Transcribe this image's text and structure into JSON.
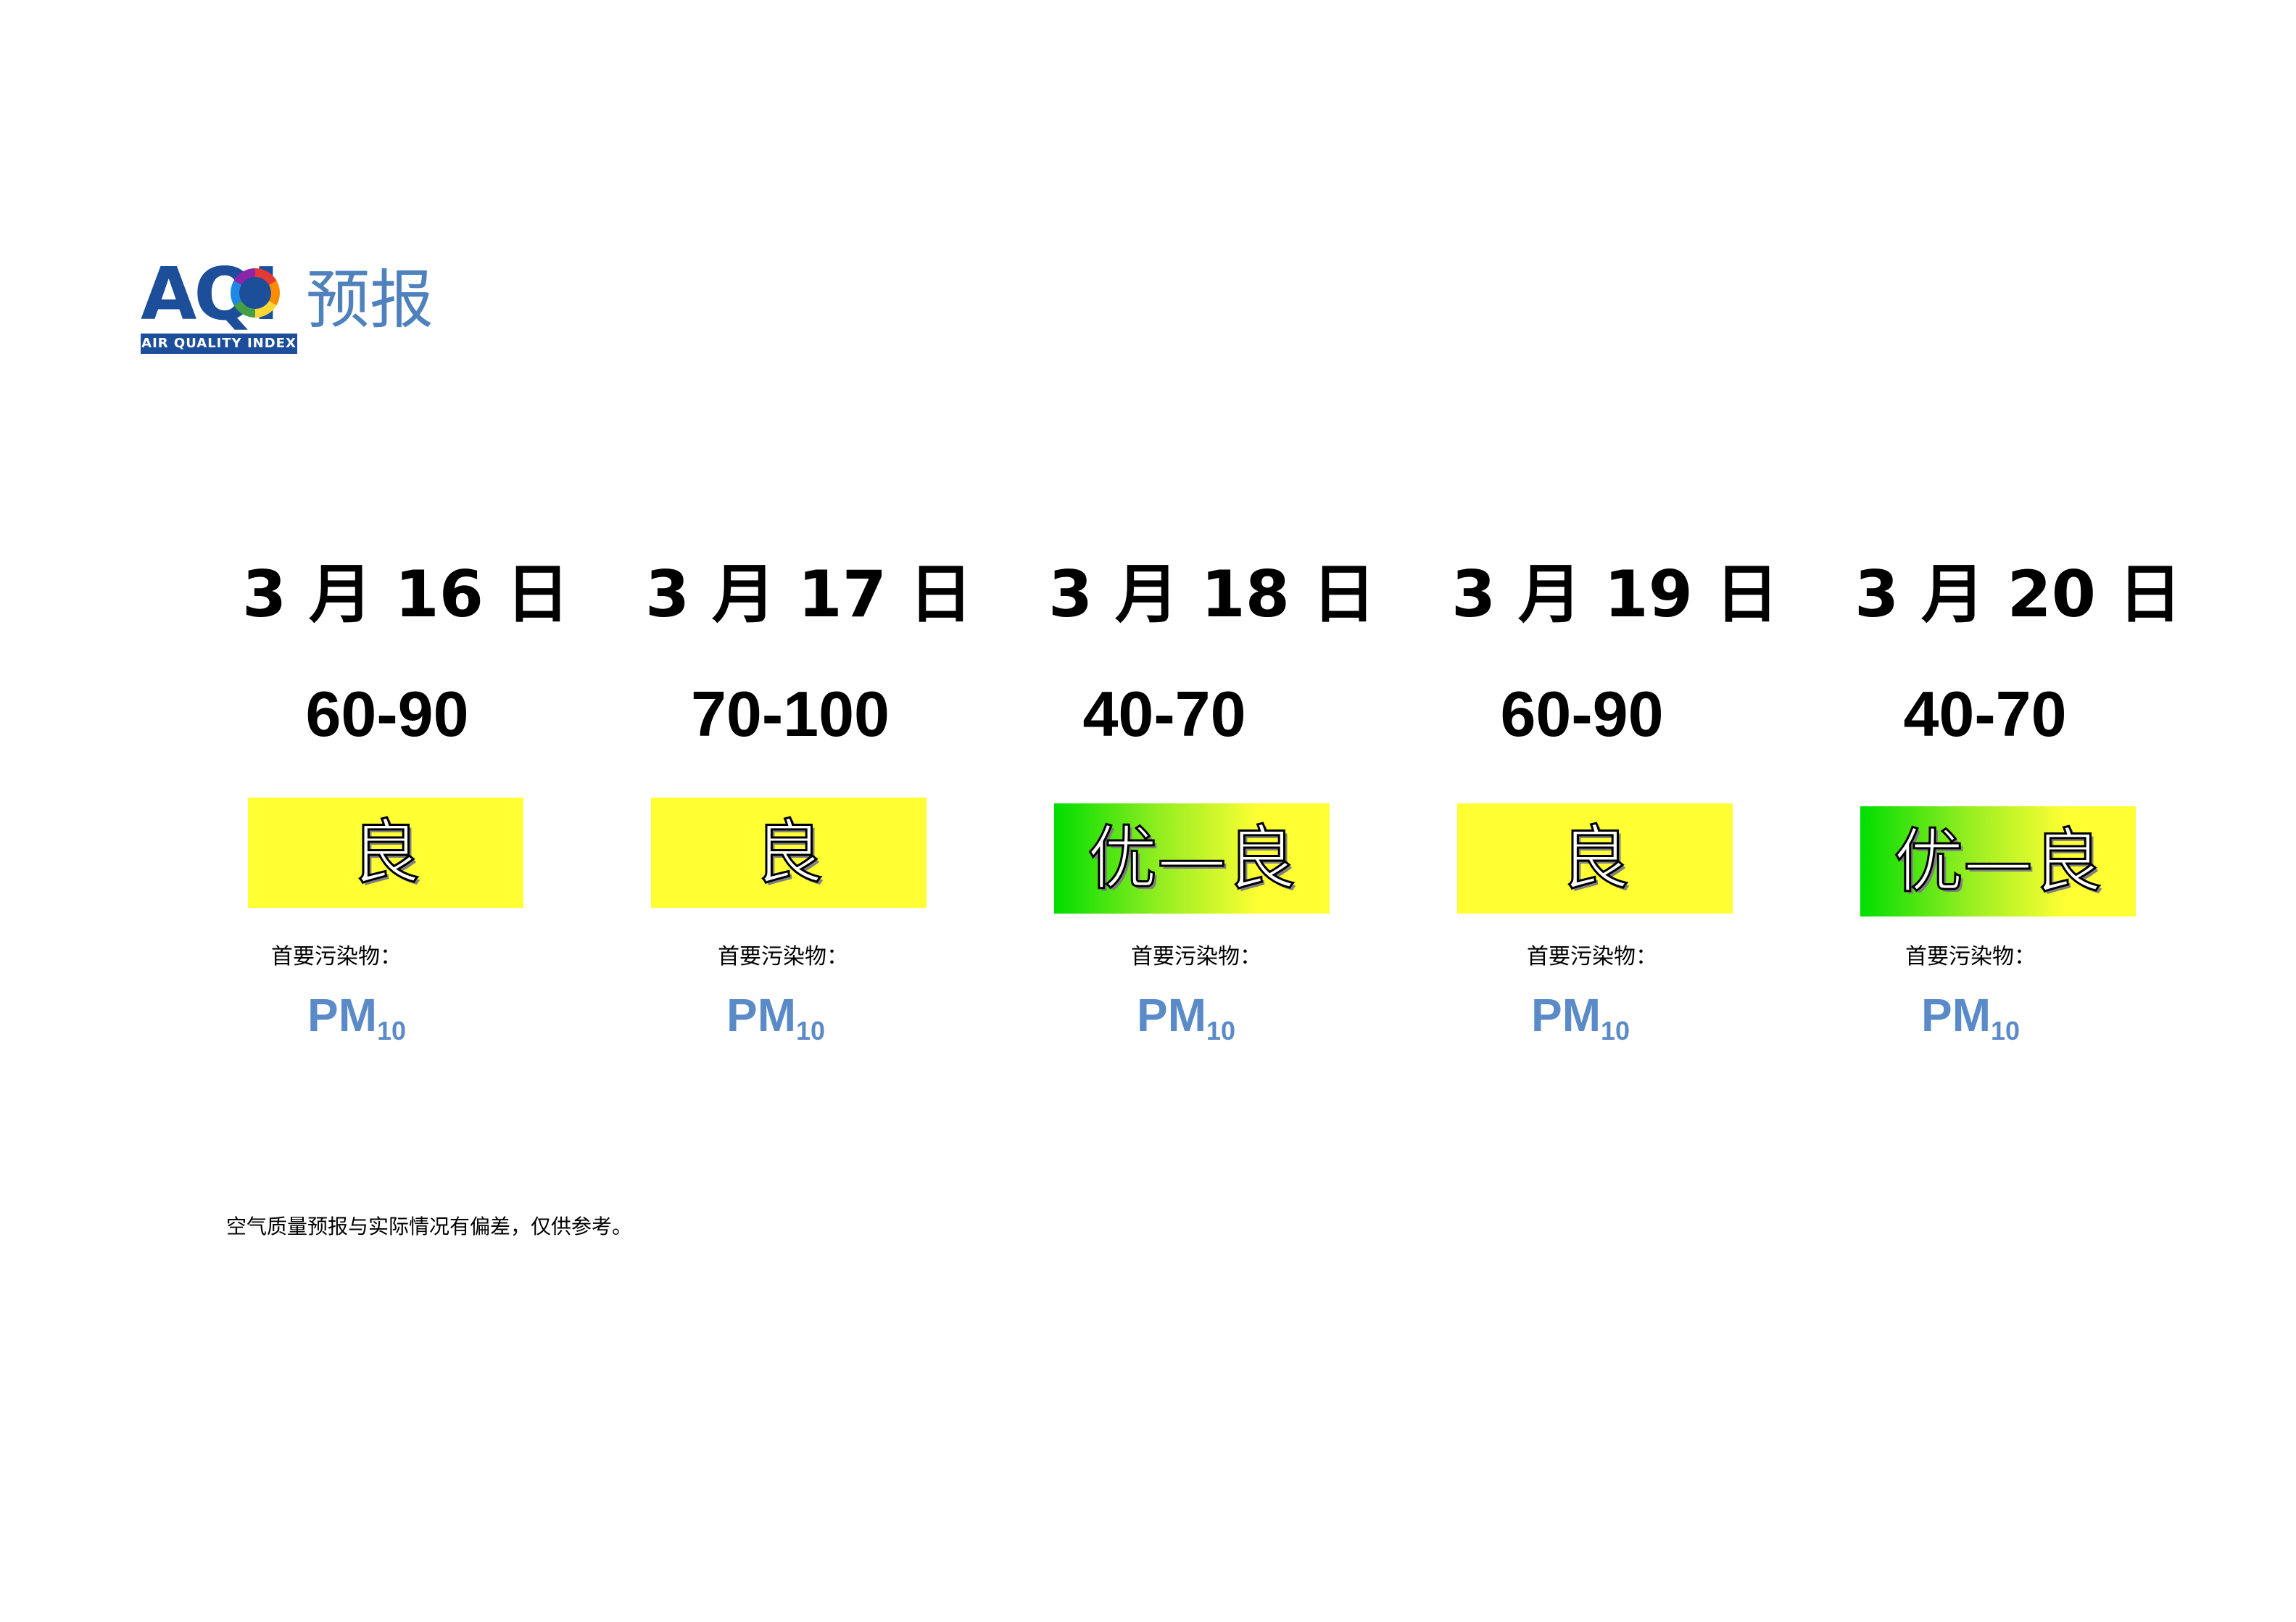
{
  "logo": {
    "mark": "AQI",
    "band": "AIR QUALITY INDEX",
    "title": "预报",
    "icon": "globe-icon"
  },
  "forecast": {
    "days": [
      {
        "date": "3 月 16 日",
        "range": "60-90",
        "level": "良",
        "level_style": "yellow",
        "pollutant_label": "首要污染物：",
        "pollutant": "PM",
        "pollutant_sub": "10"
      },
      {
        "date": "3 月 17 日",
        "range": "70-100",
        "level": "良",
        "level_style": "yellow",
        "pollutant_label": "首要污染物：",
        "pollutant": "PM",
        "pollutant_sub": "10"
      },
      {
        "date": "3 月 18 日",
        "range": "40-70",
        "level": "优—良",
        "level_style": "gradient",
        "pollutant_label": "首要污染物：",
        "pollutant": "PM",
        "pollutant_sub": "10"
      },
      {
        "date": "3 月 19 日",
        "range": "60-90",
        "level": "良",
        "level_style": "yellow",
        "pollutant_label": "首要污染物：",
        "pollutant": "PM",
        "pollutant_sub": "10"
      },
      {
        "date": "3 月 20 日",
        "range": "40-70",
        "level": "优—良",
        "level_style": "gradient",
        "pollutant_label": "首要污染物：",
        "pollutant": "PM",
        "pollutant_sub": "10"
      }
    ]
  },
  "colors": {
    "good": "#ffff33",
    "excellent": "#00dd00",
    "pollutant": "#5b8ac8",
    "logo": "#1c4e9a"
  },
  "disclaimer": "空气质量预报与实际情况有偏差，仅供参考。"
}
